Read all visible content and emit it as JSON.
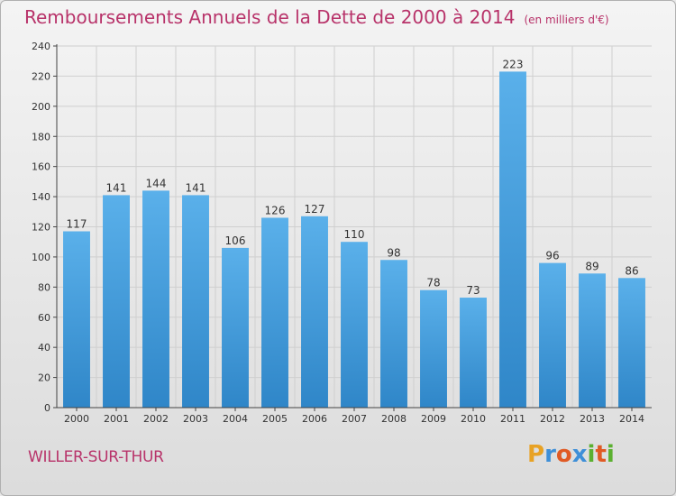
{
  "chart_data": {
    "type": "bar",
    "title": "Remboursements Annuels de la Dette de 2000 à 2014",
    "subtitle": "(en milliers d'€)",
    "categories": [
      "2000",
      "2001",
      "2002",
      "2003",
      "2004",
      "2005",
      "2006",
      "2007",
      "2008",
      "2009",
      "2010",
      "2011",
      "2012",
      "2013",
      "2014"
    ],
    "values": [
      117,
      141,
      144,
      141,
      106,
      126,
      127,
      110,
      98,
      78,
      73,
      223,
      96,
      89,
      86
    ],
    "yticks": [
      0,
      20,
      40,
      60,
      80,
      100,
      120,
      140,
      160,
      180,
      200,
      220,
      240
    ],
    "ylim": [
      0,
      240
    ],
    "xlabel": "",
    "ylabel": "",
    "grid": true,
    "bar_color_top": "#5ab0ea",
    "bar_color_bottom": "#2f86c8"
  },
  "place_name": "WILLER-SUR-THUR",
  "logo": {
    "letters": [
      "P",
      "r",
      "o",
      "x",
      "i",
      "t",
      "i"
    ],
    "colors": [
      "#e8a224",
      "#3e8fd8",
      "#e05a24",
      "#3e8fd8",
      "#5bb030",
      "#e05a24",
      "#5bb030"
    ]
  },
  "colors": {
    "title": "#b8336a",
    "grid": "#cfcfcf",
    "axis": "#444444"
  }
}
